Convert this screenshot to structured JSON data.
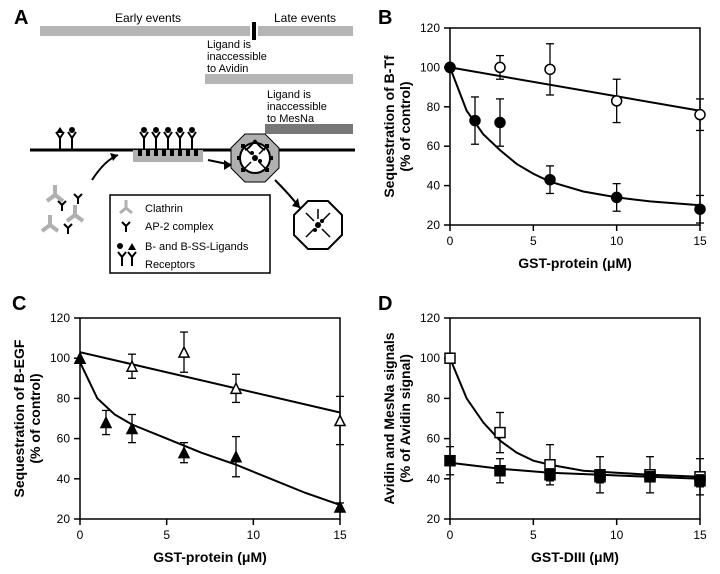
{
  "panelA": {
    "label": "A",
    "early_events": "Early events",
    "late_events": "Late events",
    "ligand_avidin_line1": "Ligand is",
    "ligand_avidin_line2": "inaccessible",
    "ligand_avidin_line3": "to Avidin",
    "ligand_mesna_line1": "Ligand is",
    "ligand_mesna_line2": "inaccessible",
    "ligand_mesna_line3": "to MesNa",
    "legend": {
      "clathrin": "Clathrin",
      "ap2": "AP-2 complex",
      "bss": "B- and B-SS-Ligands",
      "receptors": "Receptors"
    },
    "colors": {
      "bar": "#b5b5b5",
      "bar_dark": "#777777",
      "black": "#000000",
      "membrane_line": "#000000",
      "clathrin_gray": "#b0b0b0"
    },
    "fontsize": {
      "timeline": 12,
      "annotation": 11,
      "legend": 11
    }
  },
  "panelB": {
    "label": "B",
    "xlabel": "GST-protein (μM)",
    "ylabel_l1": "Sequestration of B-Tf",
    "ylabel_l2": "(% of control)",
    "xlim": [
      0,
      15
    ],
    "ylim": [
      20,
      120
    ],
    "xticks": [
      0,
      5,
      10,
      15
    ],
    "yticks": [
      20,
      40,
      60,
      80,
      100,
      120
    ],
    "series_open": {
      "marker": "circle-open",
      "color": "#000000",
      "fill": "#ffffff",
      "x": [
        0,
        3,
        6,
        10,
        15
      ],
      "y": [
        100,
        100,
        99,
        83,
        76
      ],
      "err": [
        0,
        6,
        13,
        11,
        8
      ]
    },
    "series_filled": {
      "marker": "circle-filled",
      "color": "#000000",
      "fill": "#000000",
      "x": [
        0,
        1.5,
        3,
        6,
        10,
        15
      ],
      "y": [
        100,
        73,
        72,
        43,
        34,
        28
      ],
      "err": [
        0,
        12,
        12,
        7,
        7,
        7
      ]
    },
    "line_open": {
      "x": [
        0,
        15
      ],
      "y": [
        100,
        78
      ]
    },
    "curve_filled": [
      [
        0,
        100
      ],
      [
        1,
        78
      ],
      [
        2,
        66
      ],
      [
        3,
        58
      ],
      [
        4,
        51
      ],
      [
        5,
        46
      ],
      [
        6,
        42
      ],
      [
        8,
        37
      ],
      [
        10,
        34
      ],
      [
        12,
        32
      ],
      [
        15,
        30
      ]
    ],
    "background": "#ffffff",
    "tick_fontsize": 12,
    "label_fontsize": 14,
    "line_width": 2,
    "marker_size": 5
  },
  "panelC": {
    "label": "C",
    "xlabel": "GST-protein (μM)",
    "ylabel_l1": "Sequestration of B-EGF",
    "ylabel_l2": "(% of control)",
    "xlim": [
      0,
      15
    ],
    "ylim": [
      20,
      120
    ],
    "xticks": [
      0,
      5,
      10,
      15
    ],
    "yticks": [
      20,
      40,
      60,
      80,
      100,
      120
    ],
    "series_open": {
      "marker": "triangle-open",
      "color": "#000000",
      "fill": "#ffffff",
      "x": [
        0,
        3,
        6,
        9,
        15
      ],
      "y": [
        100,
        96,
        103,
        85,
        69
      ],
      "err": [
        0,
        6,
        10,
        7,
        12
      ]
    },
    "series_filled": {
      "marker": "triangle-filled",
      "color": "#000000",
      "fill": "#000000",
      "x": [
        0,
        1.5,
        3,
        6,
        9,
        15
      ],
      "y": [
        100,
        68,
        65,
        53,
        51,
        26
      ],
      "err": [
        0,
        6,
        7,
        5,
        10,
        2
      ]
    },
    "line_open": {
      "x": [
        0,
        15
      ],
      "y": [
        103,
        73
      ]
    },
    "curve_filled": [
      [
        0,
        98
      ],
      [
        1,
        80
      ],
      [
        2,
        72
      ],
      [
        3,
        67
      ],
      [
        5,
        60
      ],
      [
        7,
        53
      ],
      [
        9,
        47
      ],
      [
        11,
        40
      ],
      [
        13,
        33
      ],
      [
        15,
        27
      ]
    ],
    "background": "#ffffff",
    "tick_fontsize": 12,
    "label_fontsize": 14,
    "line_width": 2,
    "marker_size": 5
  },
  "panelD": {
    "label": "D",
    "xlabel": "GST-DIII (μM)",
    "ylabel_l1": "Avidin and MesNa signals",
    "ylabel_l2": "(% of Avidin signal)",
    "xlim": [
      0,
      15
    ],
    "ylim": [
      20,
      120
    ],
    "xticks": [
      0,
      5,
      10,
      15
    ],
    "yticks": [
      20,
      40,
      60,
      80,
      100,
      120
    ],
    "series_open": {
      "marker": "square-open",
      "color": "#000000",
      "fill": "#ffffff",
      "x": [
        0,
        3,
        6,
        9,
        12,
        15
      ],
      "y": [
        100,
        63,
        47,
        42,
        42,
        41
      ],
      "err": [
        0,
        10,
        10,
        9,
        9,
        9
      ]
    },
    "series_filled": {
      "marker": "square-filled",
      "color": "#000000",
      "fill": "#000000",
      "x": [
        0,
        3,
        6,
        9,
        12,
        15
      ],
      "y": [
        49,
        44,
        42,
        41,
        41,
        39
      ],
      "err": [
        7,
        6,
        3,
        3,
        0,
        3
      ]
    },
    "curve_open": [
      [
        0,
        100
      ],
      [
        1,
        80
      ],
      [
        2,
        68
      ],
      [
        3,
        59
      ],
      [
        4,
        53
      ],
      [
        5,
        49
      ],
      [
        6,
        47
      ],
      [
        8,
        44
      ],
      [
        10,
        43
      ],
      [
        12,
        42
      ],
      [
        15,
        41
      ]
    ],
    "line_filled": [
      [
        0,
        48
      ],
      [
        3,
        45
      ],
      [
        6,
        43
      ],
      [
        9,
        42
      ],
      [
        12,
        41
      ],
      [
        15,
        40
      ]
    ],
    "background": "#ffffff",
    "tick_fontsize": 12,
    "label_fontsize": 14,
    "line_width": 2,
    "marker_size": 5
  }
}
